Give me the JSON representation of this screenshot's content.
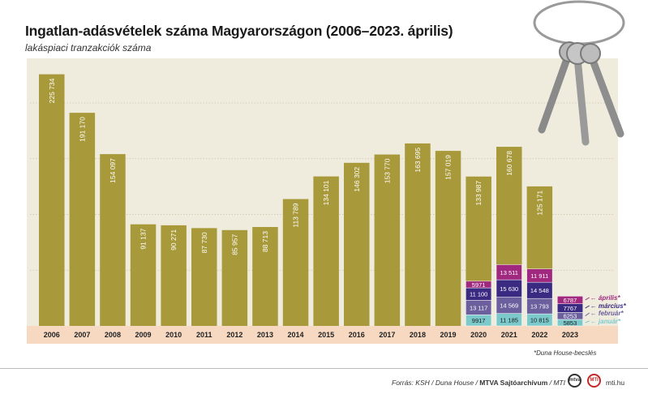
{
  "title": "Ingatlan-adásvételek száma Magyarországon (2006–2023. április)",
  "subtitle": "lakáspiaci tranzakciók száma",
  "footnote": "*Duna House-becslés",
  "footer": {
    "source_prefix": "Forrás: KSH / Duna House / ",
    "source_bold": "MTVA Sajtóarchívum",
    "source_suffix": " / MTI",
    "logo_a": "mtva",
    "logo_b": "MTI",
    "site": "mti.hu"
  },
  "colors": {
    "bar": "#a8993a",
    "background": "#f0ecdd",
    "axis_band": "#f7d9c2",
    "january": "#7cc9cc",
    "february": "#6b5f9e",
    "march": "#3b2a82",
    "april": "#a0287f",
    "grid": "#c9c2a8"
  },
  "icons": [
    "keys-illustration"
  ],
  "chart_data": {
    "type": "bar",
    "ylim": [
      0,
      240000
    ],
    "grid": true,
    "categories": [
      "2006",
      "2007",
      "2008",
      "2009",
      "2010",
      "2011",
      "2012",
      "2013",
      "2014",
      "2015",
      "2016",
      "2017",
      "2018",
      "2019",
      "2020",
      "2021",
      "2022",
      "2023"
    ],
    "value_labels": [
      "225 734",
      "191 170",
      "154 097",
      "91 137",
      "90 271",
      "87 730",
      "85 957",
      "88 713",
      "113 789",
      "134 101",
      "146 302",
      "153 770",
      "163 695",
      "157 019",
      "133 987",
      "160 678",
      "125 171",
      ""
    ],
    "values": [
      225734,
      191170,
      154097,
      91137,
      90271,
      87730,
      85957,
      88713,
      113789,
      134101,
      146302,
      153770,
      163695,
      157019,
      133987,
      160678,
      125171,
      null
    ],
    "monthly_series": [
      {
        "name": "január*",
        "values": {
          "2020": 9917,
          "2021": 11185,
          "2022": 10815,
          "2023": 5853
        },
        "labels": {
          "2020": "9917",
          "2021": "11 185",
          "2022": "10 815",
          "2023": "5853"
        }
      },
      {
        "name": "február*",
        "values": {
          "2020": 13117,
          "2021": 14569,
          "2022": 13793,
          "2023": 6253
        },
        "labels": {
          "2020": "13 117",
          "2021": "14 569",
          "2022": "13 793",
          "2023": "6253"
        }
      },
      {
        "name": "március*",
        "values": {
          "2020": 11100,
          "2021": 15630,
          "2022": 14548,
          "2023": 7767
        },
        "labels": {
          "2020": "11 100",
          "2021": "15 630",
          "2022": "14 548",
          "2023": "7767"
        }
      },
      {
        "name": "április*",
        "values": {
          "2020": 5971,
          "2021": 13511,
          "2022": 11911,
          "2023": 6787
        },
        "labels": {
          "2020": "5971",
          "2021": "13 511",
          "2022": "11 911",
          "2023": "6787"
        }
      }
    ]
  }
}
